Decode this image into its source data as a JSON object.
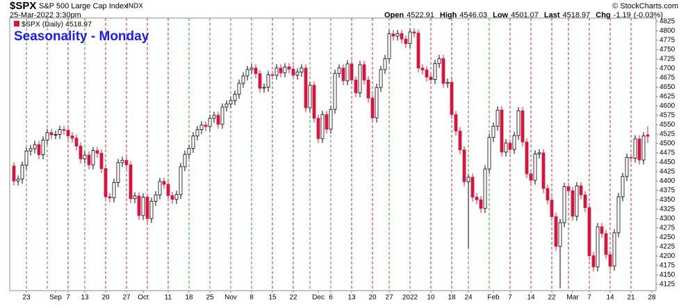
{
  "header": {
    "symbol": "$SPX",
    "name": "S&P 500 Large Cap Index",
    "exchange": "INDX",
    "timestamp": "25-Mar-2022 3:30pm",
    "copyright": "© StockCharts.com",
    "quote": [
      {
        "label": "Open",
        "value": 4522.91
      },
      {
        "label": "High",
        "value": 4546.03
      },
      {
        "label": "Low",
        "value": 4501.07
      },
      {
        "label": "Last",
        "value": 4518.97
      },
      {
        "label": "Chg",
        "value": -1.19
      }
    ],
    "change_pct": "(-0.03%)"
  },
  "chart_data": {
    "type": "candlestick",
    "title": "Seasonality - Monday",
    "legend": "$SPX (Daily) 4518.97",
    "up_color": "#ffffff",
    "down_color": "#d8143c",
    "monday_up_color": "#2e9e2e",
    "monday_down_color": "#d62020",
    "xlim": [
      -1,
      154
    ],
    "xticks": [
      {
        "value": 3,
        "label": "23"
      },
      {
        "value": 10,
        "label": "Sep"
      },
      {
        "value": 13,
        "label": "7"
      },
      {
        "value": 17,
        "label": "13"
      },
      {
        "value": 22,
        "label": "20"
      },
      {
        "value": 27,
        "label": "27"
      },
      {
        "value": 31,
        "label": "Oct"
      },
      {
        "value": 37,
        "label": "11"
      },
      {
        "value": 42,
        "label": "18"
      },
      {
        "value": 47,
        "label": "25"
      },
      {
        "value": 52,
        "label": "Nov"
      },
      {
        "value": 57,
        "label": "8"
      },
      {
        "value": 62,
        "label": "15"
      },
      {
        "value": 67,
        "label": "22"
      },
      {
        "value": 73,
        "label": "Dec"
      },
      {
        "value": 76,
        "label": "6"
      },
      {
        "value": 81,
        "label": "13"
      },
      {
        "value": 86,
        "label": "20"
      },
      {
        "value": 90,
        "label": "27"
      },
      {
        "value": 95,
        "label": "2022"
      },
      {
        "value": 100,
        "label": "10"
      },
      {
        "value": 105,
        "label": "18"
      },
      {
        "value": 109,
        "label": "24"
      },
      {
        "value": 115,
        "label": "Feb"
      },
      {
        "value": 119,
        "label": "7"
      },
      {
        "value": 124,
        "label": "14"
      },
      {
        "value": 129,
        "label": "22"
      },
      {
        "value": 134,
        "label": "Mar"
      },
      {
        "value": 138,
        "label": "7"
      },
      {
        "value": 143,
        "label": "14"
      },
      {
        "value": 148,
        "label": "21"
      },
      {
        "value": 153,
        "label": "28"
      }
    ],
    "mondays": [
      3,
      8,
      13,
      17,
      22,
      27,
      32,
      37,
      42,
      47,
      52,
      57,
      62,
      67,
      71,
      76,
      81,
      86,
      90,
      95,
      100,
      105,
      109,
      114,
      119,
      124,
      129,
      133,
      138,
      143,
      148
    ],
    "ylim": [
      4108,
      4834
    ],
    "yticks": [
      4125,
      4150,
      4175,
      4200,
      4225,
      4250,
      4275,
      4300,
      4325,
      4350,
      4375,
      4400,
      4425,
      4450,
      4475,
      4500,
      4525,
      4550,
      4575,
      4600,
      4625,
      4650,
      4675,
      4700,
      4725,
      4750,
      4775,
      4800,
      4825
    ],
    "open": [
      4440,
      4400,
      4405,
      4442,
      4480,
      4486,
      4497,
      4470,
      4509,
      4529,
      4523,
      4524,
      4537,
      4535,
      4520,
      4514,
      4493,
      4459,
      4469,
      4443,
      4481,
      4474,
      4433,
      4358,
      4355,
      4396,
      4449,
      4455,
      4443,
      4353,
      4360,
      4308,
      4357,
      4300,
      4346,
      4363,
      4399,
      4391,
      4361,
      4351,
      4364,
      4438,
      4471,
      4487,
      4520,
      4537,
      4549,
      4545,
      4567,
      4575,
      4551,
      4597,
      4605,
      4614,
      4631,
      4660,
      4680,
      4697,
      4701,
      4686,
      4647,
      4650,
      4683,
      4682,
      4701,
      4688,
      4704,
      4698,
      4682,
      4690,
      4701,
      4595,
      4655,
      4567,
      4513,
      4577,
      4538,
      4591,
      4687,
      4701,
      4667,
      4712,
      4669,
      4635,
      4710,
      4669,
      4621,
      4568,
      4649,
      4697,
      4726,
      4792,
      4786,
      4793,
      4778,
      4766,
      4797,
      4794,
      4701,
      4696,
      4677,
      4670,
      4713,
      4726,
      4660,
      4663,
      4577,
      4533,
      4483,
      4398,
      4410,
      4357,
      4350,
      4327,
      4432,
      4516,
      4546,
      4589,
      4477,
      4501,
      4484,
      4521,
      4587,
      4504,
      4419,
      4402,
      4472,
      4475,
      4380,
      4349,
      4305,
      4226,
      4289,
      4385,
      4374,
      4306,
      4387,
      4363,
      4329,
      4201,
      4171,
      4278,
      4260,
      4204,
      4173,
      4262,
      4358,
      4412,
      4463,
      4461,
      4512,
      4456,
      4522.91
    ],
    "high": [
      4450,
      4415,
      4452,
      4490,
      4496,
      4507,
      4507,
      4519,
      4539,
      4539,
      4534,
      4547,
      4547,
      4545,
      4530,
      4524,
      4503,
      4479,
      4479,
      4491,
      4491,
      4484,
      4443,
      4368,
      4406,
      4459,
      4465,
      4465,
      4453,
      4370,
      4370,
      4367,
      4367,
      4356,
      4373,
      4409,
      4409,
      4401,
      4371,
      4374,
      4448,
      4481,
      4497,
      4530,
      4547,
      4559,
      4559,
      4577,
      4585,
      4585,
      4607,
      4615,
      4624,
      4641,
      4670,
      4690,
      4707,
      4711,
      4711,
      4696,
      4660,
      4693,
      4693,
      4711,
      4711,
      4714,
      4714,
      4708,
      4700,
      4711,
      4711,
      4665,
      4665,
      4577,
      4587,
      4587,
      4601,
      4697,
      4711,
      4711,
      4722,
      4722,
      4679,
      4720,
      4720,
      4679,
      4631,
      4659,
      4707,
      4736,
      4802,
      4802,
      4803,
      4803,
      4788,
      4807,
      4807,
      4804,
      4711,
      4706,
      4687,
      4723,
      4736,
      4736,
      4673,
      4673,
      4587,
      4543,
      4493,
      4420,
      4420,
      4367,
      4360,
      4442,
      4526,
      4556,
      4599,
      4599,
      4511,
      4511,
      4531,
      4597,
      4597,
      4514,
      4429,
      4482,
      4485,
      4485,
      4390,
      4359,
      4315,
      4299,
      4395,
      4395,
      4384,
      4397,
      4397,
      4373,
      4339,
      4211,
      4288,
      4288,
      4270,
      4214,
      4272,
      4368,
      4422,
      4473,
      4473,
      4522,
      4522,
      4530,
      4546.03
    ],
    "low": [
      4388,
      4388,
      4393,
      4430,
      4468,
      4474,
      4458,
      4458,
      4497,
      4511,
      4511,
      4512,
      4523,
      4508,
      4502,
      4481,
      4447,
      4447,
      4431,
      4431,
      4462,
      4421,
      4346,
      4343,
      4343,
      4384,
      4437,
      4431,
      4341,
      4341,
      4296,
      4296,
      4288,
      4288,
      4334,
      4351,
      4379,
      4349,
      4339,
      4339,
      4352,
      4426,
      4459,
      4475,
      4508,
      4525,
      4533,
      4533,
      4555,
      4539,
      4539,
      4585,
      4593,
      4602,
      4619,
      4648,
      4668,
      4685,
      4674,
      4635,
      4635,
      4638,
      4670,
      4670,
      4676,
      4676,
      4686,
      4670,
      4670,
      4678,
      4583,
      4583,
      4555,
      4501,
      4501,
      4526,
      4526,
      4579,
      4675,
      4655,
      4655,
      4657,
      4623,
      4623,
      4657,
      4609,
      4556,
      4556,
      4637,
      4685,
      4714,
      4774,
      4774,
      4766,
      4754,
      4754,
      4782,
      4689,
      4684,
      4665,
      4658,
      4658,
      4701,
      4648,
      4648,
      4565,
      4521,
      4471,
      4386,
      4222,
      4345,
      4338,
      4315,
      4315,
      4420,
      4504,
      4534,
      4465,
      4465,
      4472,
      4472,
      4509,
      4492,
      4407,
      4390,
      4390,
      4460,
      4368,
      4337,
      4293,
      4214,
      4114,
      4277,
      4362,
      4294,
      4294,
      4351,
      4317,
      4189,
      4159,
      4159,
      4248,
      4192,
      4161,
      4161,
      4250,
      4346,
      4400,
      4449,
      4449,
      4444,
      4444,
      4501.07
    ],
    "close": [
      4400,
      4405,
      4442,
      4480,
      4486,
      4497,
      4470,
      4509,
      4529,
      4523,
      4524,
      4537,
      4535,
      4520,
      4514,
      4493,
      4459,
      4469,
      4443,
      4481,
      4474,
      4433,
      4358,
      4355,
      4396,
      4449,
      4455,
      4443,
      4353,
      4360,
      4308,
      4357,
      4300,
      4346,
      4363,
      4399,
      4391,
      4361,
      4351,
      4364,
      4438,
      4471,
      4487,
      4520,
      4537,
      4549,
      4545,
      4567,
      4575,
      4551,
      4597,
      4605,
      4614,
      4631,
      4660,
      4680,
      4697,
      4701,
      4686,
      4647,
      4650,
      4683,
      4682,
      4701,
      4688,
      4704,
      4698,
      4682,
      4690,
      4701,
      4595,
      4655,
      4567,
      4513,
      4577,
      4538,
      4591,
      4687,
      4701,
      4667,
      4712,
      4669,
      4635,
      4710,
      4669,
      4621,
      4568,
      4649,
      4697,
      4726,
      4792,
      4786,
      4793,
      4778,
      4766,
      4797,
      4794,
      4701,
      4696,
      4677,
      4670,
      4713,
      4726,
      4660,
      4663,
      4577,
      4533,
      4483,
      4398,
      4410,
      4357,
      4350,
      4327,
      4432,
      4516,
      4546,
      4589,
      4477,
      4501,
      4484,
      4521,
      4587,
      4504,
      4419,
      4402,
      4472,
      4475,
      4380,
      4349,
      4305,
      4226,
      4289,
      4385,
      4374,
      4306,
      4387,
      4363,
      4329,
      4201,
      4171,
      4278,
      4260,
      4204,
      4173,
      4262,
      4358,
      4412,
      4463,
      4461,
      4512,
      4456,
      4520,
      4518.97
    ]
  }
}
